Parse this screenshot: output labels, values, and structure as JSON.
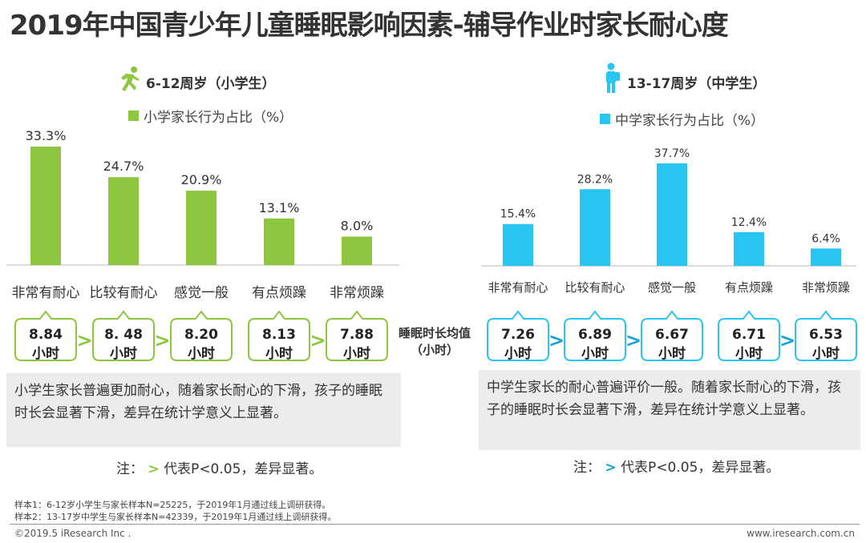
{
  "title": "2019年中国青少年儿童睡眠影响因素-辅导作业时家长耐心度",
  "left_panel": {
    "heading": "6-12周岁（小学生）",
    "legend": "小学家长行为占比（%）",
    "color": "#8dc63f",
    "description": "小学生家长普遍更加耐心，随着家长耐心的下滑，孩子的睡眠时长会显著下滑，差异在统计学意义上显著。",
    "note_prefix": "注：",
    "note_symbol": ">",
    "note_suffix": "代表P<0.05，差异显著。"
  },
  "right_panel": {
    "heading": "13-17周岁（中学生）",
    "legend": "中学家长行为占比（%）",
    "color": "#29c5f0",
    "description": "中学生家长的耐心普遍评价一般。随着家长耐心的下滑，孩子的睡眠时长会显著下滑，差异在统计学意义上显著。",
    "note_prefix": "注：",
    "note_symbol": ">",
    "note_suffix": "代表P<0.05，差异显著。"
  },
  "middle_label": [
    "睡眠时长均值",
    "（小时）"
  ],
  "chart_data": [
    {
      "type": "bar",
      "title": "6-12周岁（小学生）",
      "series_name": "小学家长行为占比（%）",
      "categories": [
        "非常有耐心",
        "比较有耐心",
        "感觉一般",
        "有点烦躁",
        "非常烦躁"
      ],
      "values": [
        33.3,
        24.7,
        20.9,
        13.1,
        8.0
      ],
      "value_labels": [
        "33.3%",
        "24.7%",
        "20.9%",
        "13.1%",
        "8.0%"
      ],
      "sleep_hours": [
        "8.84",
        "8. 48",
        "8.20",
        "8.13",
        "7.88"
      ],
      "sleep_unit": "小时",
      "comparisons": [
        ">",
        ">",
        "",
        ">"
      ],
      "ylim": [
        0,
        40
      ]
    },
    {
      "type": "bar",
      "title": "13-17周岁（中学生）",
      "series_name": "中学家长行为占比（%）",
      "categories": [
        "非常有耐心",
        "比较有耐心",
        "感觉一般",
        "有点烦躁",
        "非常烦躁"
      ],
      "values": [
        15.4,
        28.2,
        37.7,
        12.4,
        6.4
      ],
      "value_labels": [
        "15.4%",
        "28.2%",
        "37.7%",
        "12.4%",
        "6.4%"
      ],
      "sleep_hours": [
        "7.26",
        "6.89",
        "6.67",
        "6.71",
        "6.53"
      ],
      "sleep_unit": "小时",
      "comparisons": [
        ">",
        ">",
        "",
        ">"
      ],
      "ylim": [
        0,
        40
      ]
    }
  ],
  "samples": [
    "样本1：6-12岁小学生与家长样本N=25225，于2019年1月通过线上调研获得。",
    "样本2：13-17岁中学生与家长样本N=42339，于2019年1月通过线上调研获得。"
  ],
  "footer": {
    "copyright": "©2019.5 iResearch Inc .",
    "url": "www.iresearch.com.cn"
  }
}
